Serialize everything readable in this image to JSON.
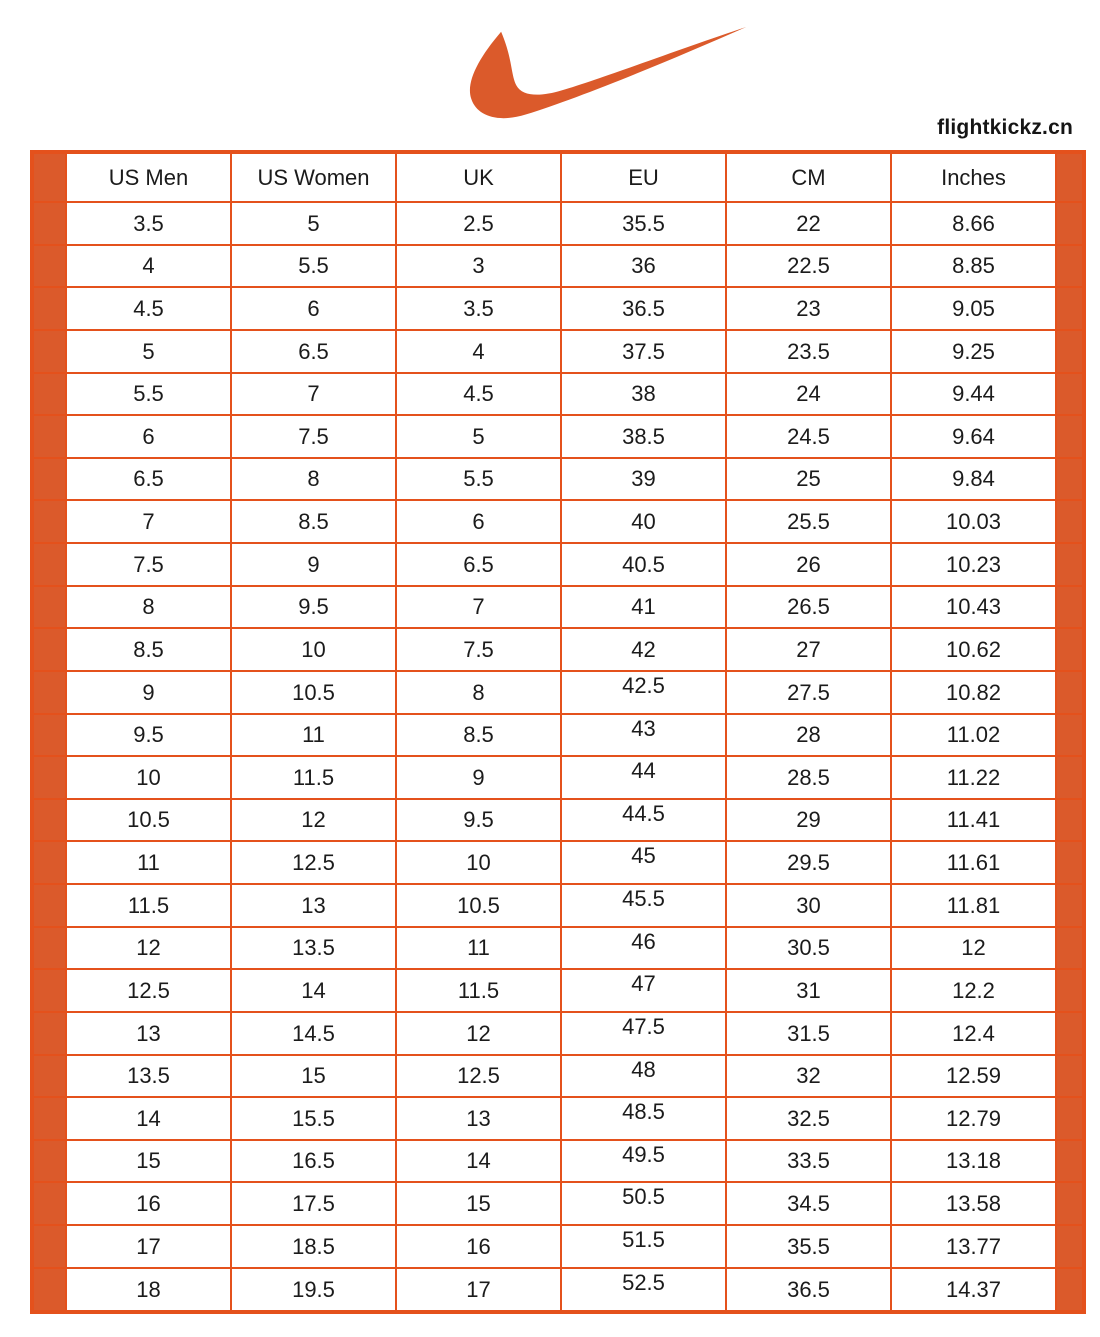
{
  "brand": {
    "logo_icon": "nike-swoosh",
    "watermark": "flightkickz.cn"
  },
  "colors": {
    "accent_orange": "#DB5A2B",
    "grid_orange": "#E4511C",
    "text_black": "#1B1B1B",
    "background": "#FFFFFF"
  },
  "chart_data": {
    "type": "table",
    "columns": [
      "US Men",
      "US Women",
      "UK",
      "EU",
      "CM",
      "Inches"
    ],
    "rows": [
      [
        "3.5",
        "5",
        "2.5",
        "35.5",
        "22",
        "8.66"
      ],
      [
        "4",
        "5.5",
        "3",
        "36",
        "22.5",
        "8.85"
      ],
      [
        "4.5",
        "6",
        "3.5",
        "36.5",
        "23",
        "9.05"
      ],
      [
        "5",
        "6.5",
        "4",
        "37.5",
        "23.5",
        "9.25"
      ],
      [
        "5.5",
        "7",
        "4.5",
        "38",
        "24",
        "9.44"
      ],
      [
        "6",
        "7.5",
        "5",
        "38.5",
        "24.5",
        "9.64"
      ],
      [
        "6.5",
        "8",
        "5.5",
        "39",
        "25",
        "9.84"
      ],
      [
        "7",
        "8.5",
        "6",
        "40",
        "25.5",
        "10.03"
      ],
      [
        "7.5",
        "9",
        "6.5",
        "40.5",
        "26",
        "10.23"
      ],
      [
        "8",
        "9.5",
        "7",
        "41",
        "26.5",
        "10.43"
      ],
      [
        "8.5",
        "10",
        "7.5",
        "42",
        "27",
        "10.62"
      ],
      [
        "9",
        "10.5",
        "8",
        "42.5",
        "27.5",
        "10.82"
      ],
      [
        "9.5",
        "11",
        "8.5",
        "43",
        "28",
        "11.02"
      ],
      [
        "10",
        "11.5",
        "9",
        "44",
        "28.5",
        "11.22"
      ],
      [
        "10.5",
        "12",
        "9.5",
        "44.5",
        "29",
        "11.41"
      ],
      [
        "11",
        "12.5",
        "10",
        "45",
        "29.5",
        "11.61"
      ],
      [
        "11.5",
        "13",
        "10.5",
        "45.5",
        "30",
        "11.81"
      ],
      [
        "12",
        "13.5",
        "11",
        "46",
        "30.5",
        "12"
      ],
      [
        "12.5",
        "14",
        "11.5",
        "47",
        "31",
        "12.2"
      ],
      [
        "13",
        "14.5",
        "12",
        "47.5",
        "31.5",
        "12.4"
      ],
      [
        "13.5",
        "15",
        "12.5",
        "48",
        "32",
        "12.59"
      ],
      [
        "14",
        "15.5",
        "13",
        "48.5",
        "32.5",
        "12.79"
      ],
      [
        "15",
        "16.5",
        "14",
        "49.5",
        "33.5",
        "13.18"
      ],
      [
        "16",
        "17.5",
        "15",
        "50.5",
        "34.5",
        "13.58"
      ],
      [
        "17",
        "18.5",
        "16",
        "51.5",
        "35.5",
        "13.77"
      ],
      [
        "18",
        "19.5",
        "17",
        "52.5",
        "36.5",
        "14.37"
      ]
    ]
  }
}
